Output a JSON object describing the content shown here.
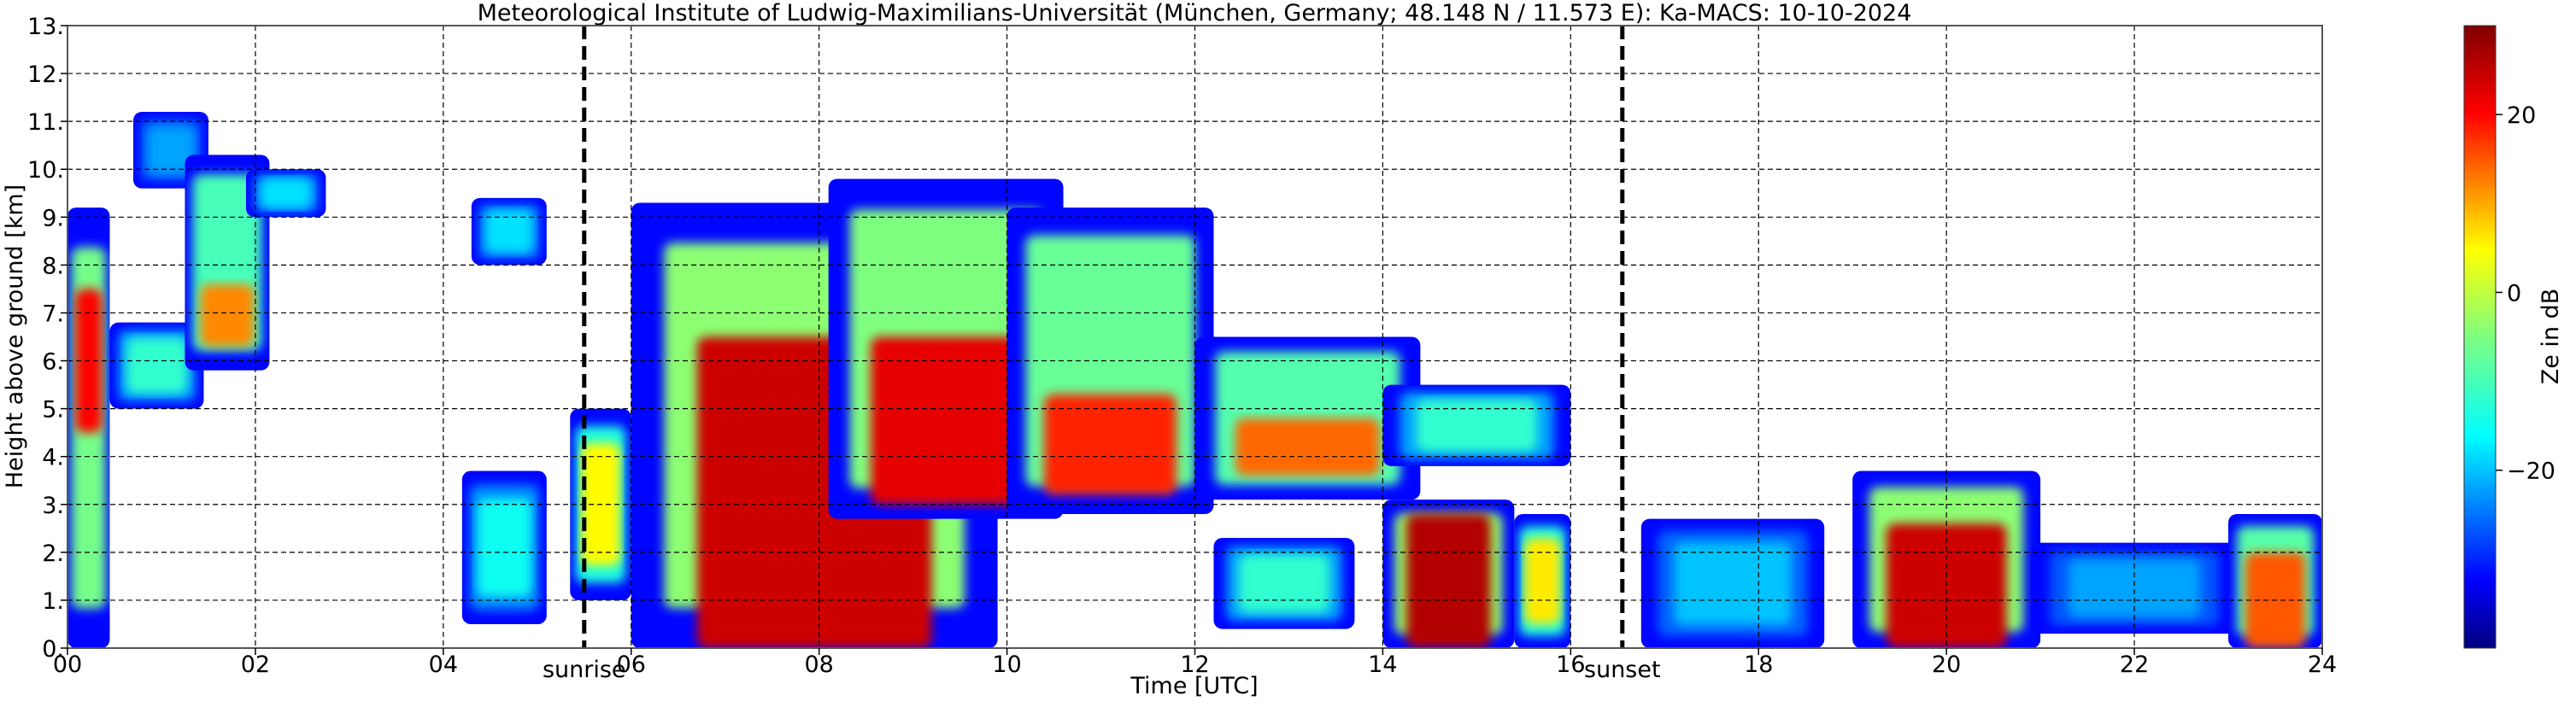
{
  "chart_data": {
    "type": "heatmap",
    "title": "Meteorological Institute of Ludwig-Maximilians-Universität (München, Germany; 48.148 N / 11.573 E):    Ka-MACS: 10-10-2024",
    "xlabel": "Time [UTC]",
    "ylabel": "Height above ground [km]",
    "xlim": [
      0,
      24
    ],
    "ylim": [
      0,
      13
    ],
    "x_ticks": [
      {
        "value": 0,
        "label": "00"
      },
      {
        "value": 2,
        "label": "02"
      },
      {
        "value": 4,
        "label": "04"
      },
      {
        "value": 6,
        "label": "06"
      },
      {
        "value": 8,
        "label": "08"
      },
      {
        "value": 10,
        "label": "10"
      },
      {
        "value": 12,
        "label": "12"
      },
      {
        "value": 14,
        "label": "14"
      },
      {
        "value": 16,
        "label": "16"
      },
      {
        "value": 18,
        "label": "18"
      },
      {
        "value": 20,
        "label": "20"
      },
      {
        "value": 22,
        "label": "22"
      },
      {
        "value": 24,
        "label": "24"
      }
    ],
    "y_ticks": [
      {
        "value": 0,
        "label": "0."
      },
      {
        "value": 1,
        "label": "1."
      },
      {
        "value": 2,
        "label": "2."
      },
      {
        "value": 3,
        "label": "3."
      },
      {
        "value": 4,
        "label": "4."
      },
      {
        "value": 5,
        "label": "5."
      },
      {
        "value": 6,
        "label": "6."
      },
      {
        "value": 7,
        "label": "7."
      },
      {
        "value": 8,
        "label": "8."
      },
      {
        "value": 9,
        "label": "9."
      },
      {
        "value": 10,
        "label": "10."
      },
      {
        "value": 11,
        "label": "11."
      },
      {
        "value": 12,
        "label": "12."
      },
      {
        "value": 13,
        "label": "13."
      }
    ],
    "grid": true,
    "vertical_markers": [
      {
        "time": 5.5,
        "label": "sunrise"
      },
      {
        "time": 16.55,
        "label": "sunset"
      }
    ],
    "colorbar": {
      "label": "Ze in dB",
      "range": [
        -40,
        30
      ],
      "ticks": [
        {
          "value": 20,
          "label": "20"
        },
        {
          "value": 0,
          "label": "0"
        },
        {
          "value": -20,
          "label": "−20"
        }
      ],
      "colormap": [
        "#00007f",
        "#0000ff",
        "#007fff",
        "#00ffff",
        "#7fff7f",
        "#ffff00",
        "#ff7f00",
        "#ff0000",
        "#7f0000"
      ]
    },
    "echo_regions": [
      {
        "t0": 0.0,
        "t1": 0.45,
        "h0": 0.0,
        "h1": 9.2,
        "peak_dbz": 20,
        "core": [
          4.5,
          7.5
        ]
      },
      {
        "t0": 0.45,
        "t1": 1.45,
        "h0": 5.0,
        "h1": 6.8,
        "peak_dbz": -12
      },
      {
        "t0": 0.7,
        "t1": 1.5,
        "h0": 9.6,
        "h1": 11.2,
        "peak_dbz": -22
      },
      {
        "t0": 1.25,
        "t1": 2.15,
        "h0": 5.8,
        "h1": 10.3,
        "peak_dbz": 12,
        "core": [
          6.3,
          7.6
        ]
      },
      {
        "t0": 1.9,
        "t1": 2.75,
        "h0": 9.0,
        "h1": 10.0,
        "peak_dbz": -18
      },
      {
        "t0": 4.2,
        "t1": 5.1,
        "h0": 0.5,
        "h1": 3.7,
        "peak_dbz": -15
      },
      {
        "t0": 4.3,
        "t1": 5.1,
        "h0": 8.0,
        "h1": 9.4,
        "peak_dbz": -18
      },
      {
        "t0": 5.35,
        "t1": 6.0,
        "h0": 1.0,
        "h1": 5.0,
        "peak_dbz": 5
      },
      {
        "t0": 6.0,
        "t1": 9.9,
        "h0": 0.0,
        "h1": 9.3,
        "peak_dbz": 24,
        "core": [
          0.0,
          6.5
        ]
      },
      {
        "t0": 8.1,
        "t1": 10.6,
        "h0": 2.7,
        "h1": 9.8,
        "peak_dbz": 22,
        "core": [
          3.0,
          6.5
        ]
      },
      {
        "t0": 10.0,
        "t1": 12.2,
        "h0": 2.8,
        "h1": 9.2,
        "peak_dbz": 18,
        "core": [
          3.2,
          5.3
        ]
      },
      {
        "t0": 12.0,
        "t1": 14.4,
        "h0": 3.1,
        "h1": 6.5,
        "peak_dbz": 14,
        "core": [
          3.6,
          4.8
        ]
      },
      {
        "t0": 14.0,
        "t1": 16.0,
        "h0": 3.8,
        "h1": 5.5,
        "peak_dbz": -12
      },
      {
        "t0": 12.2,
        "t1": 13.7,
        "h0": 0.4,
        "h1": 2.3,
        "peak_dbz": -12
      },
      {
        "t0": 14.0,
        "t1": 15.4,
        "h0": 0.0,
        "h1": 3.1,
        "peak_dbz": 26,
        "core": [
          0.0,
          2.8
        ]
      },
      {
        "t0": 15.4,
        "t1": 16.0,
        "h0": 0.0,
        "h1": 2.8,
        "peak_dbz": 6
      },
      {
        "t0": 16.75,
        "t1": 18.7,
        "h0": 0.0,
        "h1": 2.7,
        "peak_dbz": -20
      },
      {
        "t0": 19.0,
        "t1": 21.0,
        "h0": 0.0,
        "h1": 3.7,
        "peak_dbz": 24,
        "core": [
          0.0,
          2.6
        ]
      },
      {
        "t0": 20.9,
        "t1": 23.1,
        "h0": 0.3,
        "h1": 2.2,
        "peak_dbz": -22
      },
      {
        "t0": 23.0,
        "t1": 24.0,
        "h0": 0.0,
        "h1": 2.8,
        "peak_dbz": 15,
        "core": [
          0.0,
          2.0
        ]
      }
    ]
  }
}
